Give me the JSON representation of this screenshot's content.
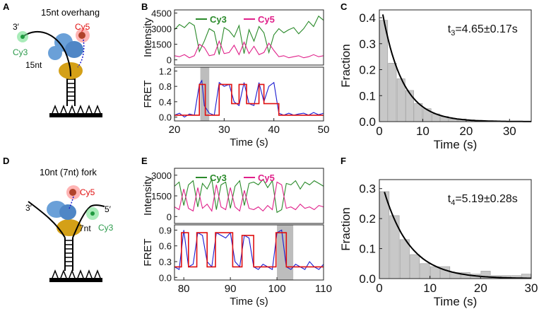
{
  "panels": {
    "A": {
      "letter": "A",
      "title": "15nt overhang",
      "label_3prime": "3′",
      "label_cy3": "Cy3",
      "label_cy5": "Cy5",
      "label_len": "15nt"
    },
    "D": {
      "letter": "D",
      "title": "10nt (7nt) fork",
      "label_3prime": "3′",
      "label_5prime": "5′",
      "label_cy3": "Cy3",
      "label_cy5": "Cy5",
      "label_len": "7nt"
    },
    "B": {
      "letter": "B"
    },
    "E": {
      "letter": "E"
    },
    "C": {
      "letter": "C"
    },
    "F": {
      "letter": "F"
    }
  },
  "colors": {
    "cy3": "#2a8a2a",
    "cy5": "#e0208a",
    "fret": "#1a1ad0",
    "fit": "#e01010",
    "bar": "#c8c8c8",
    "shade": "#bdbdbd"
  },
  "chart_data": [
    {
      "id": "B",
      "type": "line",
      "title": "",
      "xlabel": "Time (s)",
      "xlim": [
        20,
        50
      ],
      "xticks": [
        20,
        30,
        40,
        50
      ],
      "top": {
        "ylabel": "Intensity",
        "ylim": [
          -500,
          4800
        ],
        "yticks": [
          0,
          1500,
          3000,
          4500
        ],
        "legend": [
          "Cy3",
          "Cy5"
        ],
        "series": [
          {
            "name": "Cy3",
            "color": "#2a8a2a",
            "x": [
              20,
              21,
              22,
              23,
              24,
              25,
              26,
              27,
              28,
              29,
              30,
              31,
              32,
              33,
              34,
              35,
              36,
              37,
              38,
              39,
              40,
              41,
              42,
              43,
              44,
              45,
              46,
              47,
              48,
              49,
              50
            ],
            "y": [
              2900,
              3400,
              3100,
              3600,
              3300,
              800,
              1800,
              3000,
              2700,
              500,
              3100,
              2800,
              2200,
              3300,
              600,
              2900,
              1800,
              3200,
              2600,
              700,
              2400,
              3000,
              2600,
              2900,
              3100,
              2500,
              3000,
              3700,
              3200,
              4200,
              3800
            ]
          },
          {
            "name": "Cy5",
            "color": "#e0208a",
            "x": [
              20,
              21,
              22,
              23,
              24,
              25,
              26,
              27,
              28,
              29,
              30,
              31,
              32,
              33,
              34,
              35,
              36,
              37,
              38,
              39,
              40,
              41,
              42,
              43,
              44,
              45,
              46,
              47,
              48,
              49,
              50
            ],
            "y": [
              400,
              300,
              500,
              200,
              400,
              1500,
              1200,
              400,
              500,
              1800,
              600,
              700,
              1400,
              500,
              1700,
              600,
              1300,
              500,
              700,
              1600,
              900,
              300,
              400,
              200,
              300,
              400,
              200,
              300,
              500,
              300,
              400
            ]
          }
        ]
      },
      "bottom": {
        "ylabel": "FRET",
        "ylim": [
          -0.1,
          1.3
        ],
        "yticks": [
          0.0,
          0.4,
          0.8,
          1.2
        ],
        "shade": [
          25.2,
          27.0
        ],
        "series": [
          {
            "name": "FRET",
            "color": "#1a1ad0",
            "x": [
              20,
              21,
              22,
              23,
              24,
              25,
              25.5,
              26,
              27,
              28,
              29,
              30,
              31,
              32,
              33,
              34,
              35,
              36,
              37,
              38,
              39,
              40,
              41,
              42,
              43,
              44,
              45,
              46,
              47,
              48,
              49,
              50
            ],
            "y": [
              0.05,
              0.1,
              0.0,
              0.08,
              0.05,
              0.85,
              0.95,
              0.3,
              0.1,
              0.05,
              0.9,
              0.8,
              0.85,
              0.4,
              0.3,
              0.9,
              0.35,
              0.3,
              0.9,
              0.4,
              0.8,
              0.9,
              0.1,
              0.05,
              0.1,
              0.05,
              0.08,
              0.1,
              0.05,
              0.12,
              0.06,
              0.1
            ]
          },
          {
            "name": "Fit",
            "color": "#e01010",
            "x": [
              20,
              25,
              25,
              26.2,
              26.2,
              29,
              29,
              31.5,
              31.5,
              33,
              33,
              34.5,
              34.5,
              37,
              37,
              38,
              38,
              41,
              41,
              50
            ],
            "y": [
              0.05,
              0.05,
              0.85,
              0.85,
              0.05,
              0.05,
              0.85,
              0.85,
              0.35,
              0.35,
              0.85,
              0.85,
              0.35,
              0.35,
              0.85,
              0.85,
              0.35,
              0.35,
              0.05,
              0.05
            ]
          }
        ]
      }
    },
    {
      "id": "E",
      "type": "line",
      "title": "",
      "xlabel": "Time (s)",
      "xlim": [
        78,
        110
      ],
      "xticks": [
        80,
        90,
        100,
        110
      ],
      "top": {
        "ylabel": "Intensity",
        "ylim": [
          -500,
          3500
        ],
        "yticks": [
          0,
          1500,
          3000
        ],
        "legend": [
          "Cy3",
          "Cy5"
        ],
        "series": [
          {
            "name": "Cy3",
            "color": "#2a8a2a",
            "x": [
              78,
              79,
              80,
              81,
              82,
              83,
              84,
              85,
              86,
              87,
              88,
              89,
              90,
              91,
              92,
              93,
              94,
              95,
              96,
              97,
              98,
              99,
              100,
              101,
              102,
              103,
              104,
              105,
              106,
              107,
              108,
              109,
              110
            ],
            "y": [
              2200,
              2500,
              800,
              2300,
              2600,
              700,
              2400,
              2000,
              2700,
              500,
              2300,
              2500,
              600,
              2200,
              2600,
              800,
              2400,
              2500,
              2300,
              2700,
              2100,
              2600,
              300,
              500,
              2400,
              2300,
              2600,
              2000,
              2500,
              2300,
              2600,
              2400,
              2200
            ]
          },
          {
            "name": "Cy5",
            "color": "#e0208a",
            "x": [
              78,
              79,
              80,
              81,
              82,
              83,
              84,
              85,
              86,
              87,
              88,
              89,
              90,
              91,
              92,
              93,
              94,
              95,
              96,
              97,
              98,
              99,
              100,
              101,
              102,
              103,
              104,
              105,
              106,
              107,
              108,
              109,
              110
            ],
            "y": [
              700,
              500,
              2000,
              600,
              400,
              2100,
              600,
              900,
              400,
              2300,
              700,
              500,
              2100,
              700,
              400,
              1900,
              600,
              500,
              700,
              400,
              800,
              500,
              2500,
              2300,
              600,
              700,
              500,
              900,
              600,
              700,
              500,
              800,
              700
            ]
          }
        ]
      },
      "bottom": {
        "ylabel": "FRET",
        "ylim": [
          -0.05,
          1.0
        ],
        "yticks": [
          0.0,
          0.3,
          0.6,
          0.9
        ],
        "shade": [
          100,
          103.5
        ],
        "series": [
          {
            "name": "FRET",
            "color": "#1a1ad0",
            "x": [
              78,
              79,
              80,
              81,
              82,
              83,
              84,
              85,
              86,
              87,
              88,
              89,
              90,
              91,
              92,
              93,
              94,
              95,
              96,
              97,
              98,
              99,
              100,
              101,
              102,
              103,
              104,
              105,
              106,
              107,
              108,
              109,
              110
            ],
            "y": [
              0.2,
              0.15,
              0.9,
              0.2,
              0.25,
              0.85,
              0.8,
              0.3,
              0.2,
              0.85,
              0.8,
              0.75,
              0.85,
              0.3,
              0.2,
              0.8,
              0.75,
              0.2,
              0.15,
              0.25,
              0.2,
              0.15,
              0.85,
              0.9,
              0.2,
              0.15,
              0.25,
              0.2,
              0.15,
              0.3,
              0.2,
              0.15,
              0.25
            ]
          },
          {
            "name": "Fit",
            "color": "#e01010",
            "x": [
              78,
              79.5,
              79.5,
              81,
              81,
              82.8,
              82.8,
              85,
              85,
              86.8,
              86.8,
              90.5,
              90.5,
              92.5,
              92.5,
              95,
              95,
              99.8,
              99.8,
              102,
              102,
              110
            ],
            "y": [
              0.2,
              0.2,
              0.85,
              0.85,
              0.2,
              0.2,
              0.85,
              0.85,
              0.2,
              0.2,
              0.85,
              0.85,
              0.2,
              0.2,
              0.8,
              0.8,
              0.2,
              0.2,
              0.85,
              0.85,
              0.2,
              0.2
            ]
          }
        ]
      }
    },
    {
      "id": "C",
      "type": "bar",
      "title": "",
      "xlabel": "Time (s)",
      "ylabel": "Fraction",
      "xlim": [
        0,
        35
      ],
      "ylim": [
        0,
        0.43
      ],
      "xticks": [
        0,
        10,
        20,
        30
      ],
      "yticks": [
        0.0,
        0.1,
        0.2,
        0.3,
        0.4
      ],
      "annotation": "t3=4.65±0.17s",
      "annotation_main": "t",
      "annotation_sub": "3",
      "annotation_rest": "=4.65±0.17s",
      "bin_width": 2,
      "x": [
        1,
        3,
        5,
        7,
        9,
        11,
        13,
        15,
        17,
        19,
        21,
        23,
        25,
        27,
        29,
        31,
        33
      ],
      "values": [
        0.39,
        0.225,
        0.165,
        0.12,
        0.07,
        0.05,
        0.03,
        0.02,
        0.01,
        0.01,
        0.004,
        0.002,
        0.002,
        0.001,
        0.0,
        0.0,
        0.0
      ],
      "fit": {
        "type": "exponential",
        "amplitude": 0.49,
        "tau": 4.65,
        "x_start": 0.8,
        "x_end": 35
      }
    },
    {
      "id": "F",
      "type": "bar",
      "title": "",
      "xlabel": "Time (s)",
      "ylabel": "Fraction",
      "xlim": [
        0,
        30
      ],
      "ylim": [
        0,
        0.33
      ],
      "xticks": [
        0,
        10,
        20,
        30
      ],
      "yticks": [
        0.0,
        0.1,
        0.2,
        0.3
      ],
      "annotation": "t4=5.19±0.28s",
      "annotation_main": "t",
      "annotation_sub": "4",
      "annotation_rest": "=5.19±0.28s",
      "bin_width": 2,
      "x": [
        1,
        3,
        5,
        7,
        9,
        11,
        13,
        15,
        17,
        19,
        21,
        23,
        25,
        27,
        29
      ],
      "values": [
        0.29,
        0.21,
        0.13,
        0.08,
        0.05,
        0.04,
        0.04,
        0.02,
        0.02,
        0.015,
        0.025,
        0.01,
        0.01,
        0.01,
        0.015
      ],
      "fit": {
        "type": "exponential",
        "amplitude": 0.35,
        "tau": 5.19,
        "x_start": 1,
        "x_end": 30
      }
    }
  ]
}
